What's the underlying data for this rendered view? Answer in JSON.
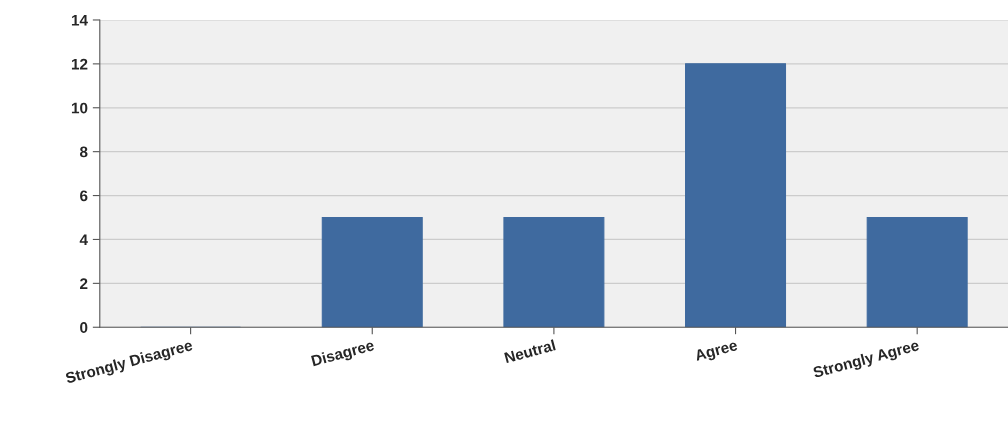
{
  "chart_data": {
    "type": "bar",
    "categories": [
      "Strongly Disagree",
      "Disagree",
      "Neutral",
      "Agree",
      "Strongly Agree"
    ],
    "values": [
      0,
      5,
      5,
      12,
      5
    ],
    "color": "#3f6a9f",
    "ylim": [
      0,
      14
    ],
    "yticks": [
      0,
      2,
      4,
      6,
      8,
      10,
      12,
      14
    ],
    "grid": "y"
  }
}
